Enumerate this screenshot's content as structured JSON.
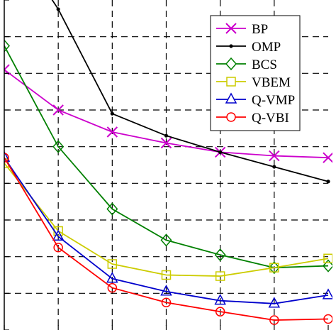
{
  "chart_data": {
    "type": "line",
    "title": "",
    "xlabel": "",
    "ylabel": "",
    "x": [
      0,
      1,
      2,
      3,
      4,
      5,
      6
    ],
    "xlim": [
      0,
      6
    ],
    "ylim": [
      0,
      9
    ],
    "grid": true,
    "legend_position": "top-right",
    "series": [
      {
        "name": "BP",
        "color": "#cc00cc",
        "marker": "x",
        "values": [
          7.1,
          6.0,
          5.4,
          5.1,
          4.85,
          4.75,
          4.7
        ]
      },
      {
        "name": "OMP",
        "color": "#000000",
        "marker": "dot",
        "values": [
          11.0,
          8.75,
          5.9,
          5.3,
          4.85,
          4.45,
          4.05
        ]
      },
      {
        "name": "BCS",
        "color": "#008000",
        "marker": "diamond",
        "values": [
          7.75,
          5.0,
          3.3,
          2.45,
          2.05,
          1.7,
          1.75
        ]
      },
      {
        "name": "VBEM",
        "color": "#cccc00",
        "marker": "square",
        "values": [
          4.55,
          2.7,
          1.8,
          1.5,
          1.47,
          1.7,
          1.95
        ]
      },
      {
        "name": "Q-VMP",
        "color": "#0000cc",
        "marker": "triangle",
        "values": [
          4.7,
          2.55,
          1.4,
          1.05,
          0.8,
          0.72,
          0.95
        ]
      },
      {
        "name": "Q-VBI",
        "color": "#ff0000",
        "marker": "circle",
        "values": [
          4.7,
          2.25,
          1.15,
          0.75,
          0.5,
          0.27,
          0.3
        ]
      }
    ]
  }
}
